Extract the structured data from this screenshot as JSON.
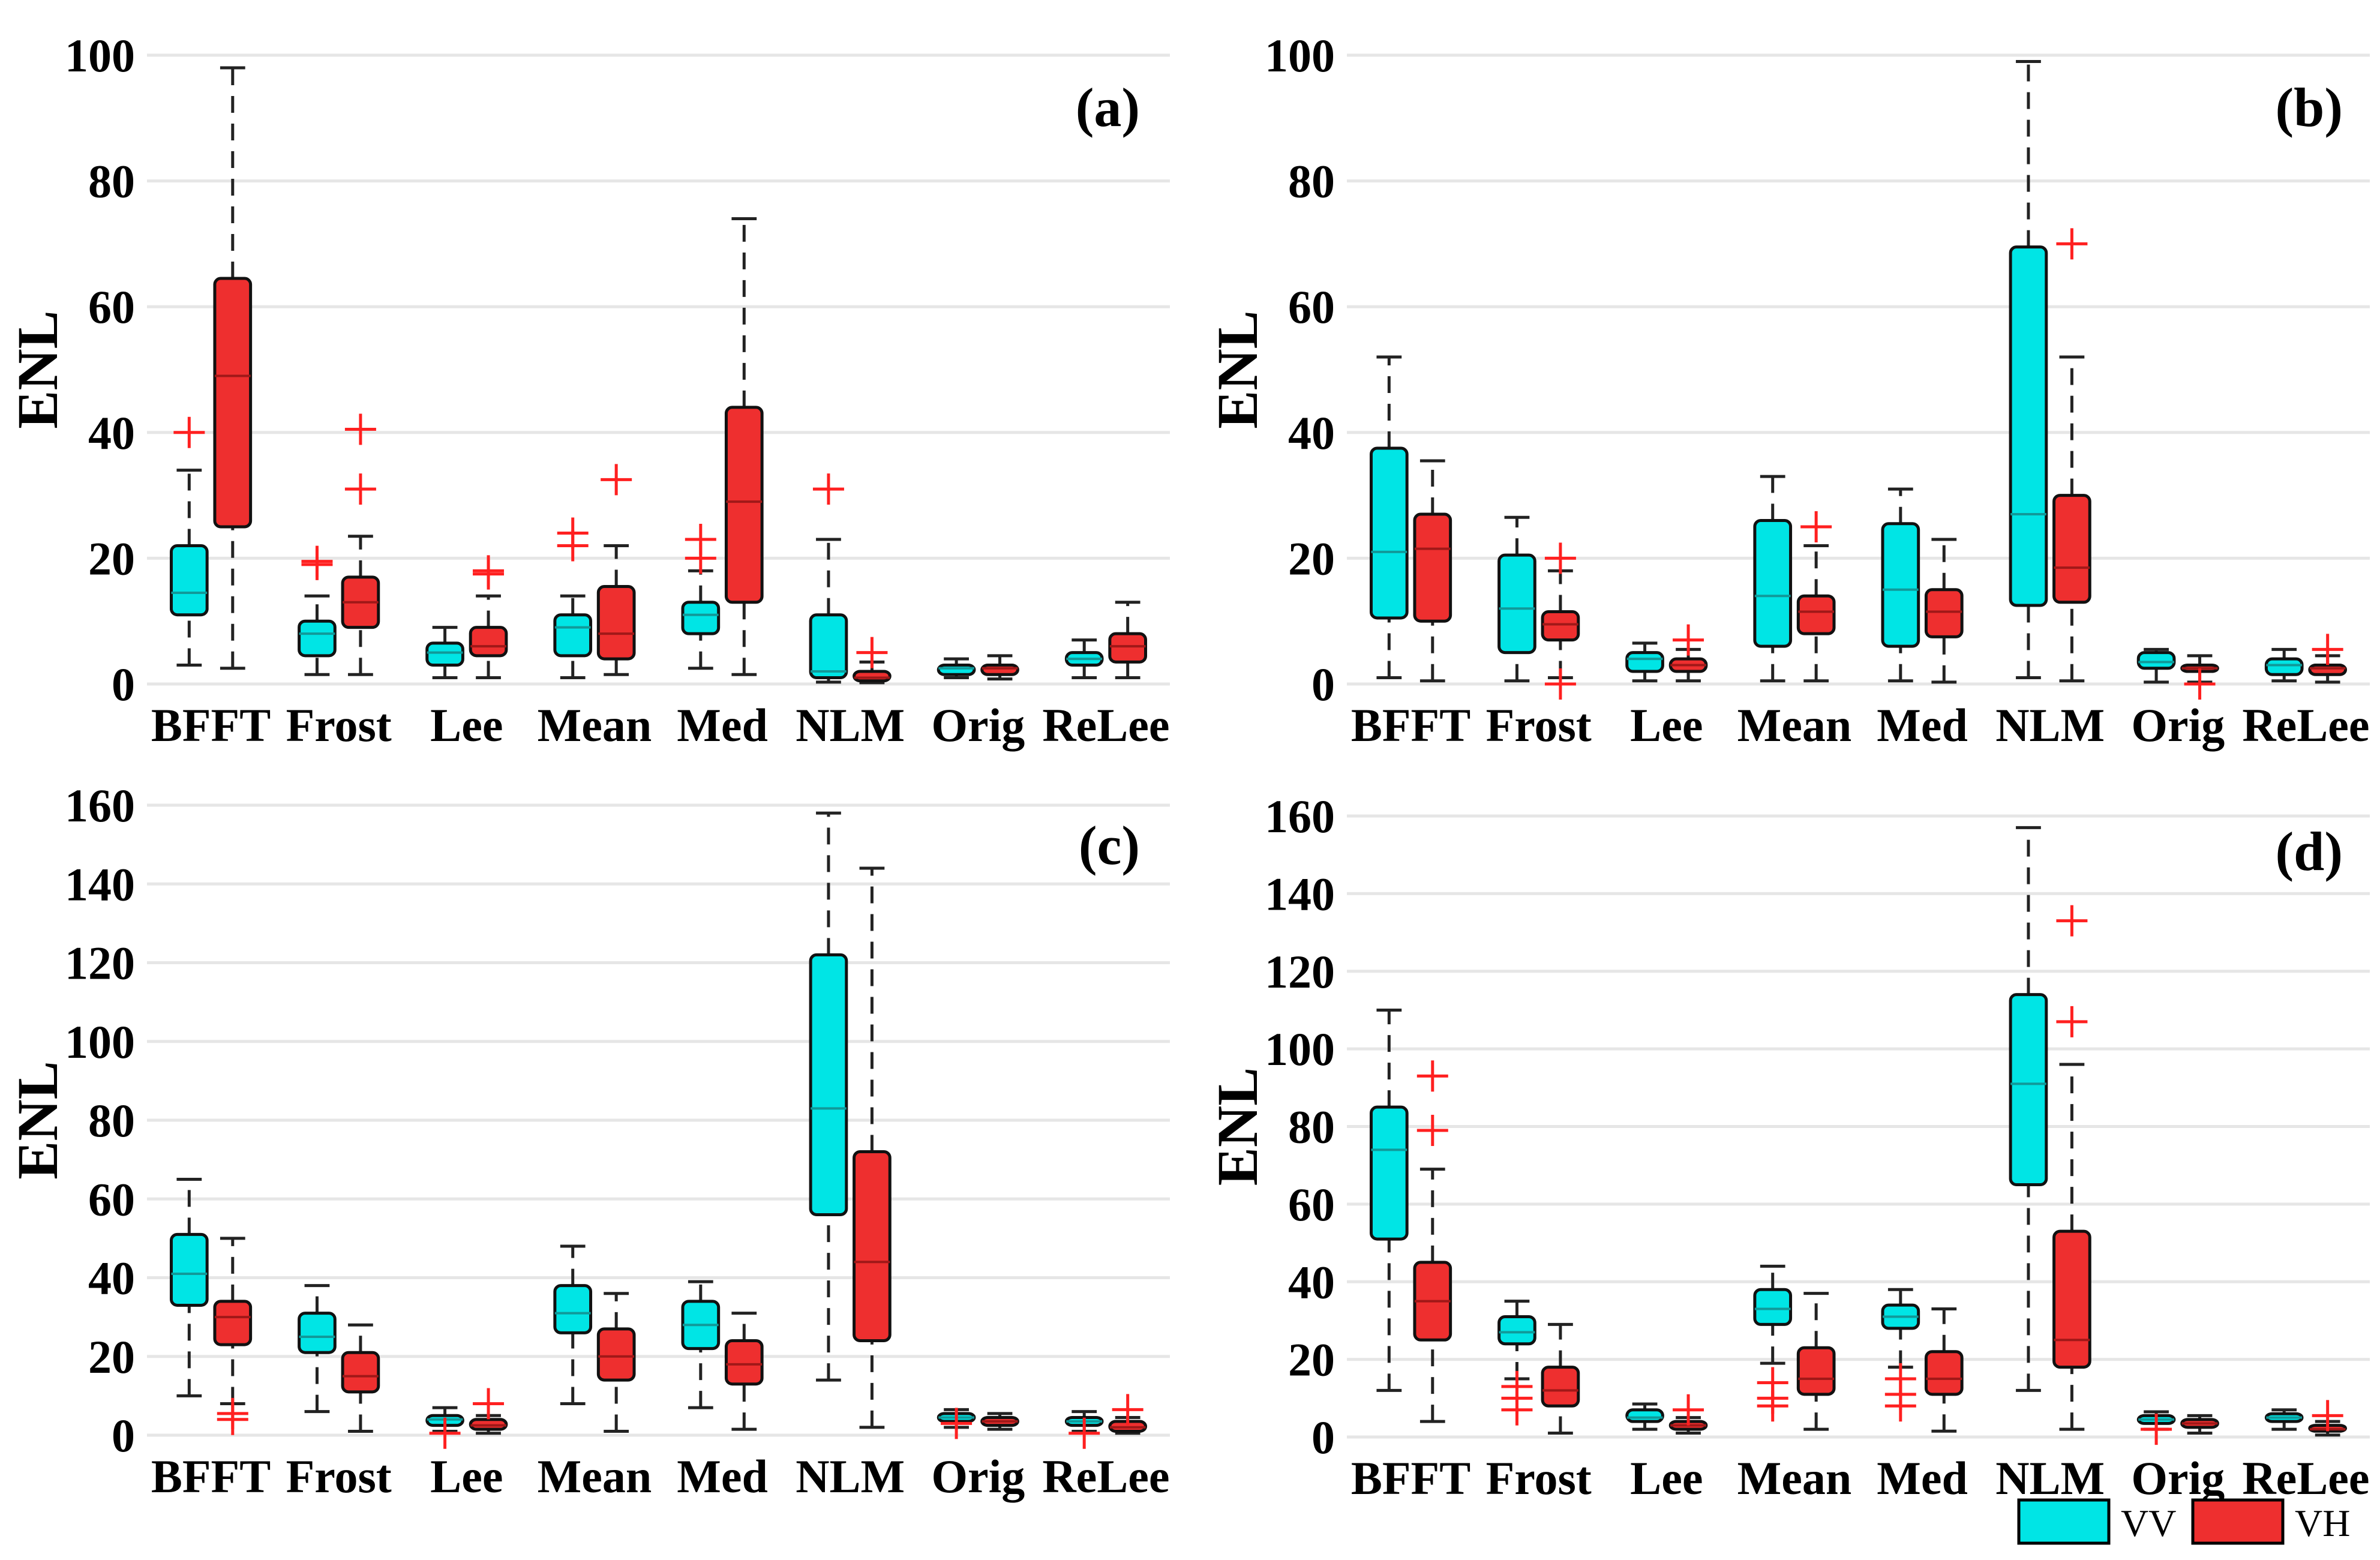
{
  "colors": {
    "vv": "#00e5e5",
    "vh": "#ee2f2f",
    "outlier": "#ff2020",
    "grid": "#e6e6e6",
    "whisker": "#222222"
  },
  "legend": {
    "vv_label": "VV",
    "vh_label": "VH"
  },
  "chart_data": [
    {
      "type": "box",
      "tag": "(a)",
      "ylabel": "ENL",
      "ylim": [
        0,
        100
      ],
      "yticks": [
        0,
        20,
        40,
        60,
        80,
        100
      ],
      "categories": [
        "BFFT",
        "Frost",
        "Lee",
        "Mean",
        "Med",
        "NLM",
        "Orig",
        "ReLee"
      ],
      "series": [
        {
          "name": "VV",
          "boxes": [
            {
              "low": 3,
              "q1": 11,
              "median": 14.5,
              "q3": 22,
              "high": 34,
              "outliers": [
                40
              ]
            },
            {
              "low": 1.5,
              "q1": 4.5,
              "median": 8,
              "q3": 10,
              "high": 14,
              "outliers": [
                19,
                19.5
              ]
            },
            {
              "low": 1,
              "q1": 3,
              "median": 5,
              "q3": 6.5,
              "high": 9,
              "outliers": []
            },
            {
              "low": 1,
              "q1": 4.5,
              "median": 9,
              "q3": 11,
              "high": 14,
              "outliers": [
                22,
                24
              ]
            },
            {
              "low": 2.5,
              "q1": 8,
              "median": 11,
              "q3": 13,
              "high": 18,
              "outliers": [
                20,
                23
              ]
            },
            {
              "low": 0.3,
              "q1": 1,
              "median": 2,
              "q3": 11,
              "high": 23,
              "outliers": [
                31
              ]
            },
            {
              "low": 1,
              "q1": 1.5,
              "median": 2.5,
              "q3": 3,
              "high": 4,
              "outliers": []
            },
            {
              "low": 1,
              "q1": 3,
              "median": 4,
              "q3": 5,
              "high": 7,
              "outliers": []
            }
          ]
        },
        {
          "name": "VH",
          "boxes": [
            {
              "low": 2.5,
              "q1": 25,
              "median": 49,
              "q3": 64.5,
              "high": 98,
              "outliers": []
            },
            {
              "low": 1.5,
              "q1": 9,
              "median": 13,
              "q3": 17,
              "high": 23.5,
              "outliers": [
                31,
                40.5
              ]
            },
            {
              "low": 1,
              "q1": 4.5,
              "median": 6,
              "q3": 9,
              "high": 14,
              "outliers": [
                17.5,
                18
              ]
            },
            {
              "low": 1.5,
              "q1": 4,
              "median": 8,
              "q3": 15.5,
              "high": 22,
              "outliers": [
                32.5
              ]
            },
            {
              "low": 1.5,
              "q1": 13,
              "median": 29,
              "q3": 44,
              "high": 74,
              "outliers": []
            },
            {
              "low": 0.2,
              "q1": 0.5,
              "median": 1,
              "q3": 2,
              "high": 3.5,
              "outliers": [
                5
              ]
            },
            {
              "low": 0.8,
              "q1": 1.5,
              "median": 2.5,
              "q3": 3,
              "high": 4.5,
              "outliers": []
            },
            {
              "low": 1,
              "q1": 3.5,
              "median": 6,
              "q3": 8,
              "high": 13,
              "outliers": []
            }
          ]
        }
      ]
    },
    {
      "type": "box",
      "tag": "(b)",
      "ylabel": "ENL",
      "ylim": [
        0,
        100
      ],
      "yticks": [
        0,
        20,
        40,
        60,
        80,
        100
      ],
      "categories": [
        "BFFT",
        "Frost",
        "Lee",
        "Mean",
        "Med",
        "NLM",
        "Orig",
        "ReLee"
      ],
      "series": [
        {
          "name": "VV",
          "boxes": [
            {
              "low": 1,
              "q1": 10.5,
              "median": 21,
              "q3": 37.5,
              "high": 52,
              "outliers": []
            },
            {
              "low": 0.5,
              "q1": 5,
              "median": 12,
              "q3": 20.5,
              "high": 26.5,
              "outliers": []
            },
            {
              "low": 0.5,
              "q1": 2,
              "median": 4,
              "q3": 5,
              "high": 6.5,
              "outliers": []
            },
            {
              "low": 0.5,
              "q1": 6,
              "median": 14,
              "q3": 26,
              "high": 33,
              "outliers": []
            },
            {
              "low": 0.5,
              "q1": 6,
              "median": 15,
              "q3": 25.5,
              "high": 31,
              "outliers": []
            },
            {
              "low": 1,
              "q1": 12.5,
              "median": 27,
              "q3": 69.5,
              "high": 99,
              "outliers": []
            },
            {
              "low": 0.3,
              "q1": 2.5,
              "median": 3.5,
              "q3": 5,
              "high": 5.5,
              "outliers": []
            },
            {
              "low": 0.5,
              "q1": 1.5,
              "median": 3,
              "q3": 4,
              "high": 5.5,
              "outliers": []
            }
          ]
        },
        {
          "name": "VH",
          "boxes": [
            {
              "low": 0.5,
              "q1": 10,
              "median": 21.5,
              "q3": 27,
              "high": 35.5,
              "outliers": []
            },
            {
              "low": 1,
              "q1": 7,
              "median": 9.5,
              "q3": 11.5,
              "high": 18,
              "outliers": [
                0,
                20
              ]
            },
            {
              "low": 0.5,
              "q1": 2,
              "median": 3,
              "q3": 4,
              "high": 5.5,
              "outliers": [
                7
              ]
            },
            {
              "low": 0.5,
              "q1": 8,
              "median": 11.5,
              "q3": 14,
              "high": 22,
              "outliers": [
                25
              ]
            },
            {
              "low": 0.3,
              "q1": 7.5,
              "median": 11.5,
              "q3": 15,
              "high": 23,
              "outliers": []
            },
            {
              "low": 0.5,
              "q1": 13,
              "median": 18.5,
              "q3": 30,
              "high": 52,
              "outliers": [
                70
              ]
            },
            {
              "low": 0.3,
              "q1": 2,
              "median": 2.5,
              "q3": 3,
              "high": 4.5,
              "outliers": [
                0
              ]
            },
            {
              "low": 0.3,
              "q1": 1.5,
              "median": 2.5,
              "q3": 3,
              "high": 4.5,
              "outliers": [
                5.5
              ]
            }
          ]
        }
      ]
    },
    {
      "type": "box",
      "tag": "(c)",
      "ylabel": "ENL",
      "ylim": [
        0,
        160
      ],
      "yticks": [
        0,
        20,
        40,
        60,
        80,
        100,
        120,
        140,
        160
      ],
      "categories": [
        "BFFT",
        "Frost",
        "Lee",
        "Mean",
        "Med",
        "NLM",
        "Orig",
        "ReLee"
      ],
      "series": [
        {
          "name": "VV",
          "boxes": [
            {
              "low": 10,
              "q1": 33,
              "median": 41,
              "q3": 51,
              "high": 65,
              "outliers": []
            },
            {
              "low": 6,
              "q1": 21,
              "median": 25,
              "q3": 31,
              "high": 38,
              "outliers": []
            },
            {
              "low": 1,
              "q1": 2.5,
              "median": 4,
              "q3": 5,
              "high": 7,
              "outliers": [
                0.5
              ]
            },
            {
              "low": 8,
              "q1": 26,
              "median": 31,
              "q3": 38,
              "high": 48,
              "outliers": []
            },
            {
              "low": 7,
              "q1": 22,
              "median": 28,
              "q3": 34,
              "high": 39,
              "outliers": []
            },
            {
              "low": 14,
              "q1": 56,
              "median": 83,
              "q3": 122,
              "high": 158,
              "outliers": []
            },
            {
              "low": 2,
              "q1": 3.5,
              "median": 4.5,
              "q3": 5.5,
              "high": 6.5,
              "outliers": [
                3
              ]
            },
            {
              "low": 1,
              "q1": 2.5,
              "median": 3.5,
              "q3": 4.5,
              "high": 6,
              "outliers": [
                0.5
              ]
            }
          ]
        },
        {
          "name": "VH",
          "boxes": [
            {
              "low": 8,
              "q1": 23,
              "median": 30,
              "q3": 34,
              "high": 50,
              "outliers": [
                4,
                5.5
              ]
            },
            {
              "low": 1,
              "q1": 11,
              "median": 15,
              "q3": 21,
              "high": 28,
              "outliers": []
            },
            {
              "low": 0.5,
              "q1": 1.5,
              "median": 2.5,
              "q3": 4,
              "high": 5,
              "outliers": [
                8
              ]
            },
            {
              "low": 1,
              "q1": 14,
              "median": 20,
              "q3": 27,
              "high": 36,
              "outliers": []
            },
            {
              "low": 1.5,
              "q1": 13,
              "median": 18,
              "q3": 24,
              "high": 31,
              "outliers": []
            },
            {
              "low": 2,
              "q1": 24,
              "median": 44,
              "q3": 72,
              "high": 144,
              "outliers": []
            },
            {
              "low": 1.5,
              "q1": 2.5,
              "median": 3.5,
              "q3": 4.5,
              "high": 5.5,
              "outliers": []
            },
            {
              "low": 0.5,
              "q1": 1,
              "median": 2,
              "q3": 3.5,
              "high": 4.5,
              "outliers": [
                6.5
              ]
            }
          ]
        }
      ]
    },
    {
      "type": "box",
      "tag": "(d)",
      "ylabel": "ENL",
      "ylim": [
        0,
        160
      ],
      "yticks": [
        0,
        20,
        40,
        60,
        80,
        100,
        120,
        140,
        160
      ],
      "categories": [
        "BFFT",
        "Frost",
        "Lee",
        "Mean",
        "Med",
        "NLM",
        "Orig",
        "ReLee"
      ],
      "series": [
        {
          "name": "VV",
          "boxes": [
            {
              "low": 12,
              "q1": 51,
              "median": 74,
              "q3": 85,
              "high": 110,
              "outliers": []
            },
            {
              "low": 15,
              "q1": 24,
              "median": 27,
              "q3": 31,
              "high": 35,
              "outliers": [
                7,
                10,
                13
              ]
            },
            {
              "low": 2,
              "q1": 4,
              "median": 5,
              "q3": 7,
              "high": 8.5,
              "outliers": []
            },
            {
              "low": 19,
              "q1": 29,
              "median": 33,
              "q3": 38,
              "high": 44,
              "outliers": [
                8,
                10,
                14
              ]
            },
            {
              "low": 18,
              "q1": 28,
              "median": 31,
              "q3": 34,
              "high": 38,
              "outliers": [
                8,
                11,
                15
              ]
            },
            {
              "low": 12,
              "q1": 65,
              "median": 91,
              "q3": 114,
              "high": 157,
              "outliers": []
            },
            {
              "low": 2,
              "q1": 3.5,
              "median": 4.5,
              "q3": 5.5,
              "high": 6.5,
              "outliers": [
                2
              ]
            },
            {
              "low": 2,
              "q1": 4,
              "median": 5,
              "q3": 6,
              "high": 7,
              "outliers": []
            }
          ]
        },
        {
          "name": "VH",
          "boxes": [
            {
              "low": 4,
              "q1": 25,
              "median": 35,
              "q3": 45,
              "high": 69,
              "outliers": [
                79,
                93
              ]
            },
            {
              "low": 1,
              "q1": 8,
              "median": 12,
              "q3": 18,
              "high": 29,
              "outliers": []
            },
            {
              "low": 1,
              "q1": 2,
              "median": 3,
              "q3": 4,
              "high": 5,
              "outliers": [
                7
              ]
            },
            {
              "low": 2,
              "q1": 11,
              "median": 15,
              "q3": 23,
              "high": 37,
              "outliers": []
            },
            {
              "low": 1.5,
              "q1": 11,
              "median": 15,
              "q3": 22,
              "high": 33,
              "outliers": []
            },
            {
              "low": 2,
              "q1": 18,
              "median": 25,
              "q3": 53,
              "high": 96,
              "outliers": [
                107,
                133
              ]
            },
            {
              "low": 1,
              "q1": 2.5,
              "median": 3.5,
              "q3": 4.5,
              "high": 5.5,
              "outliers": []
            },
            {
              "low": 0.5,
              "q1": 1.5,
              "median": 2,
              "q3": 3,
              "high": 4,
              "outliers": [
                5.5
              ]
            }
          ]
        }
      ]
    }
  ]
}
